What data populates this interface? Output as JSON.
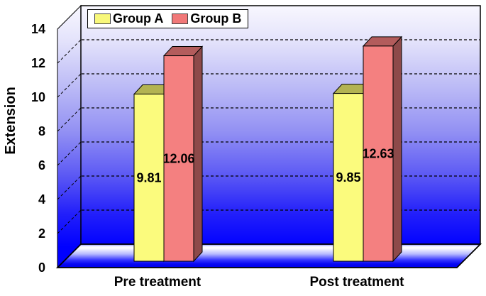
{
  "chart_data": {
    "type": "bar",
    "subtype": "3d-column",
    "ylabel": "Extension",
    "categories": [
      "Pre treatment",
      "Post treatment"
    ],
    "series": [
      {
        "name": "Group A",
        "values": [
          9.81,
          9.85
        ],
        "front_color": "#fbfb7d",
        "top_color": "#b3b352",
        "side_color": "#8f8f3e",
        "legend_swatch_color": "#f8f87a"
      },
      {
        "name": "Group B",
        "values": [
          12.06,
          12.63
        ],
        "front_color": "#f48080",
        "top_color": "#b35c5c",
        "side_color": "#8d4a4a",
        "legend_swatch_color": "#f17878"
      }
    ],
    "ylim": [
      0,
      14
    ],
    "y_ticks": [
      0,
      2,
      4,
      6,
      8,
      10,
      12,
      14
    ],
    "data_labels": [
      "9.81",
      "12.06",
      "9.85",
      "12.63"
    ],
    "grid": "horizontal-dashed-black",
    "legend_position": "top",
    "colors": {
      "wall_top": "#f8f7fe",
      "wall_bottom": "#0000ff",
      "floor_back": "#ffffff",
      "floor_front": "#0000ec",
      "outline": "#000000",
      "label_text": "#000000"
    }
  }
}
